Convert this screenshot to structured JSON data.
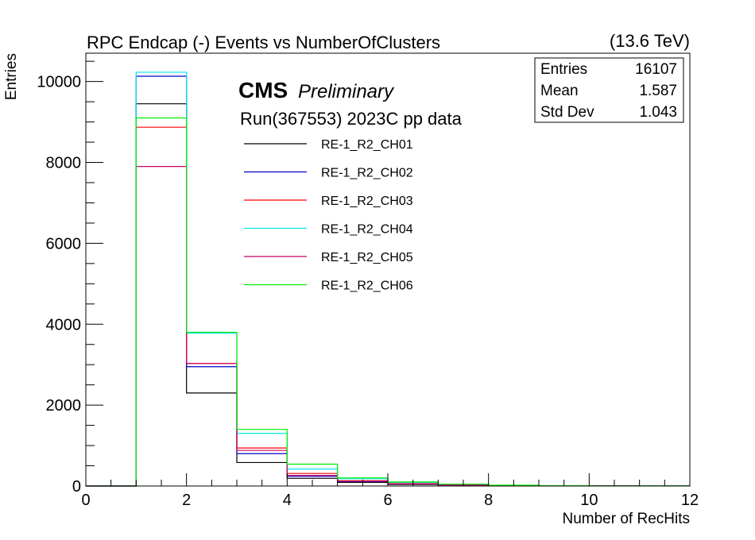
{
  "chart_data": {
    "type": "histogram",
    "title": "RPC Endcap (-)  Events vs NumberOfClusters",
    "energy_label": "(13.6 TeV)",
    "xlabel": "Number of RecHits",
    "ylabel": "Entries",
    "xlim": [
      0,
      12
    ],
    "ylim": [
      0,
      10700
    ],
    "x_ticks": [
      "0",
      "2",
      "4",
      "6",
      "8",
      "10",
      "12"
    ],
    "y_ticks": [
      "0",
      "2000",
      "4000",
      "6000",
      "8000",
      "10000"
    ],
    "cms_label": "CMS",
    "preliminary_label": "Preliminary",
    "run_label": "Run(367553) 2023C pp data",
    "bin_edges": [
      0,
      1,
      2,
      3,
      4,
      5,
      6,
      7,
      8,
      9,
      10,
      11,
      12
    ],
    "series": [
      {
        "name": "RE-1_R2_CH01",
        "color": "#000000",
        "values": [
          0,
          9450,
          2300,
          580,
          190,
          90,
          40,
          18,
          8,
          4,
          2,
          1
        ]
      },
      {
        "name": "RE-1_R2_CH02",
        "color": "#0000cc",
        "values": [
          0,
          10130,
          2950,
          800,
          240,
          110,
          55,
          25,
          12,
          5,
          3,
          1
        ]
      },
      {
        "name": "RE-1_R2_CH03",
        "color": "#ff0000",
        "values": [
          0,
          8870,
          3030,
          940,
          310,
          130,
          60,
          28,
          12,
          6,
          3,
          1
        ]
      },
      {
        "name": "RE-1_R2_CH04",
        "color": "#00e5ee",
        "values": [
          0,
          10230,
          3780,
          1300,
          420,
          180,
          90,
          40,
          18,
          8,
          4,
          2
        ]
      },
      {
        "name": "RE-1_R2_CH05",
        "color": "#cc0066",
        "values": [
          0,
          7900,
          3030,
          880,
          260,
          120,
          55,
          25,
          10,
          5,
          2,
          1
        ]
      },
      {
        "name": "RE-1_R2_CH06",
        "color": "#00ee00",
        "values": [
          0,
          9100,
          3800,
          1400,
          540,
          200,
          100,
          45,
          20,
          9,
          4,
          2
        ]
      }
    ],
    "stats": {
      "rows": [
        {
          "label": "Entries",
          "value": "16107"
        },
        {
          "label": "Mean",
          "value": "1.587"
        },
        {
          "label": "Std Dev",
          "value": "1.043"
        }
      ]
    }
  }
}
